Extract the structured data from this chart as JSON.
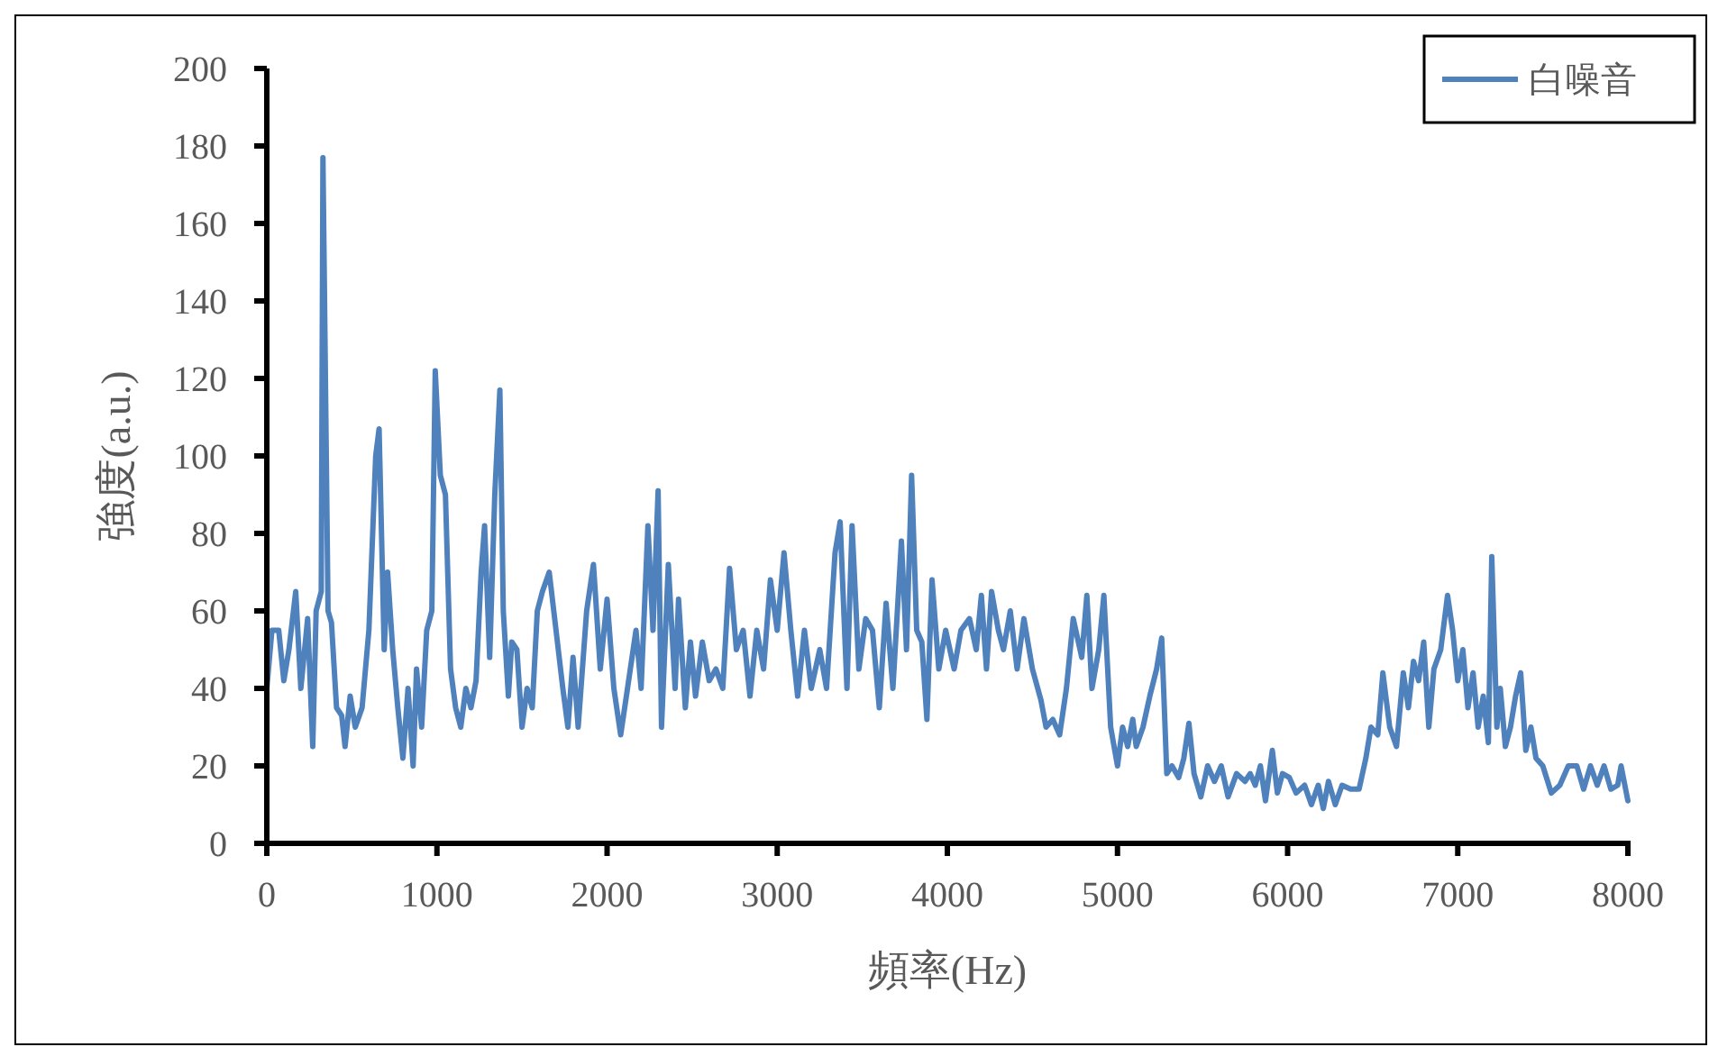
{
  "chart_data": {
    "type": "line",
    "xlabel": "頻率(Hz)",
    "ylabel": "強度(a.u.)",
    "xlim": [
      0,
      8000
    ],
    "ylim": [
      0,
      200
    ],
    "xticks": [
      0,
      1000,
      2000,
      3000,
      4000,
      5000,
      6000,
      7000,
      8000
    ],
    "yticks": [
      0,
      20,
      40,
      60,
      80,
      100,
      120,
      140,
      160,
      180,
      200
    ],
    "grid": false,
    "legend": "top right",
    "marker": "none",
    "line_style": "solid",
    "x": [
      0,
      30,
      70,
      100,
      130,
      170,
      200,
      240,
      270,
      290,
      320,
      330,
      360,
      380,
      410,
      440,
      460,
      490,
      520,
      560,
      600,
      640,
      660,
      690,
      710,
      740,
      770,
      800,
      830,
      860,
      880,
      910,
      940,
      970,
      990,
      1020,
      1050,
      1080,
      1110,
      1140,
      1170,
      1200,
      1230,
      1260,
      1280,
      1310,
      1340,
      1370,
      1390,
      1420,
      1440,
      1470,
      1500,
      1530,
      1560,
      1590,
      1620,
      1660,
      1700,
      1740,
      1770,
      1800,
      1830,
      1880,
      1920,
      1960,
      2000,
      2040,
      2080,
      2120,
      2170,
      2200,
      2240,
      2270,
      2300,
      2320,
      2360,
      2400,
      2420,
      2460,
      2490,
      2520,
      2560,
      2600,
      2640,
      2680,
      2720,
      2760,
      2800,
      2840,
      2880,
      2920,
      2960,
      3000,
      3040,
      3080,
      3120,
      3160,
      3200,
      3250,
      3290,
      3340,
      3370,
      3410,
      3440,
      3480,
      3520,
      3560,
      3600,
      3640,
      3680,
      3730,
      3760,
      3790,
      3820,
      3850,
      3880,
      3910,
      3950,
      3990,
      4040,
      4080,
      4130,
      4170,
      4200,
      4230,
      4260,
      4300,
      4330,
      4370,
      4410,
      4450,
      4500,
      4550,
      4580,
      4620,
      4660,
      4700,
      4740,
      4790,
      4820,
      4850,
      4890,
      4920,
      4960,
      5000,
      5030,
      5060,
      5090,
      5110,
      5150,
      5190,
      5230,
      5260,
      5290,
      5320,
      5360,
      5390,
      5420,
      5450,
      5490,
      5530,
      5570,
      5610,
      5650,
      5700,
      5750,
      5780,
      5810,
      5840,
      5870,
      5910,
      5940,
      5970,
      6010,
      6050,
      6100,
      6140,
      6180,
      6210,
      6240,
      6280,
      6320,
      6370,
      6420,
      6460,
      6490,
      6530,
      6560,
      6600,
      6640,
      6680,
      6710,
      6740,
      6770,
      6800,
      6830,
      6860,
      6900,
      6940,
      6970,
      7000,
      7030,
      7060,
      7090,
      7120,
      7150,
      7180,
      7200,
      7230,
      7250,
      7280,
      7310,
      7340,
      7370,
      7400,
      7430,
      7460,
      7500,
      7550,
      7600,
      7650,
      7700,
      7740,
      7780,
      7820,
      7860,
      7900,
      7940,
      7960,
      8000
    ],
    "series": [
      {
        "name": "白噪音",
        "color": "#4f81bd",
        "values": [
          40,
          55,
          55,
          42,
          50,
          65,
          40,
          58,
          25,
          60,
          65,
          177,
          60,
          57,
          35,
          33,
          25,
          38,
          30,
          35,
          55,
          100,
          107,
          50,
          70,
          50,
          35,
          22,
          40,
          20,
          45,
          30,
          55,
          60,
          122,
          95,
          90,
          45,
          35,
          30,
          40,
          35,
          42,
          70,
          82,
          48,
          90,
          117,
          60,
          38,
          52,
          50,
          30,
          40,
          35,
          60,
          65,
          70,
          55,
          40,
          30,
          48,
          30,
          60,
          72,
          45,
          63,
          40,
          28,
          40,
          55,
          40,
          82,
          55,
          91,
          30,
          72,
          40,
          63,
          35,
          52,
          38,
          52,
          42,
          45,
          40,
          71,
          50,
          55,
          38,
          55,
          45,
          68,
          55,
          75,
          55,
          38,
          55,
          40,
          50,
          40,
          75,
          83,
          40,
          82,
          45,
          58,
          55,
          35,
          62,
          40,
          78,
          50,
          95,
          55,
          52,
          32,
          68,
          45,
          55,
          45,
          55,
          58,
          50,
          64,
          45,
          65,
          55,
          50,
          60,
          45,
          58,
          45,
          37,
          30,
          32,
          28,
          40,
          58,
          48,
          64,
          40,
          50,
          64,
          30,
          20,
          30,
          25,
          32,
          25,
          30,
          38,
          45,
          53,
          18,
          20,
          17,
          22,
          31,
          18,
          12,
          20,
          16,
          20,
          12,
          18,
          16,
          18,
          15,
          20,
          11,
          24,
          13,
          18,
          17,
          13,
          15,
          10,
          15,
          9,
          16,
          10,
          15,
          14,
          14,
          22,
          30,
          28,
          44,
          30,
          25,
          44,
          35,
          47,
          42,
          52,
          30,
          45,
          50,
          64,
          55,
          42,
          50,
          35,
          44,
          30,
          38,
          26,
          74,
          30,
          40,
          25,
          30,
          38,
          44,
          24,
          30,
          22,
          20,
          13,
          15,
          20,
          20,
          14,
          20,
          15,
          20,
          14,
          15,
          20,
          11
        ]
      }
    ]
  }
}
